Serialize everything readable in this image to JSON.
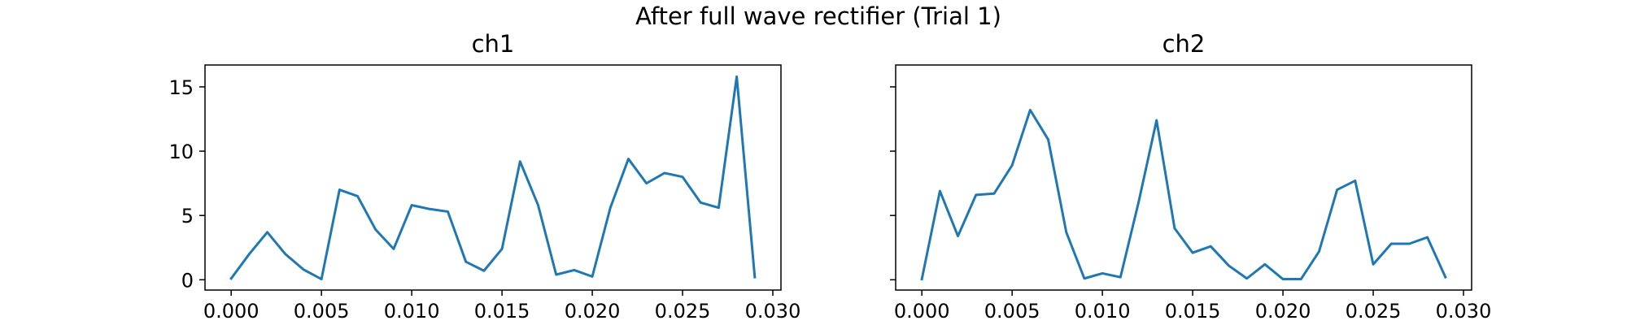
{
  "figure": {
    "suptitle": "After full wave rectifier (Trial 1)"
  },
  "chart_data": [
    {
      "type": "line",
      "title": "ch1",
      "xlabel": "",
      "ylabel": "",
      "xlim": [
        -0.00145,
        0.03045
      ],
      "ylim": [
        -0.8,
        16.7
      ],
      "xticks": [
        0.0,
        0.005,
        0.01,
        0.015,
        0.02,
        0.025,
        0.03
      ],
      "xtick_labels": [
        "0.000",
        "0.005",
        "0.010",
        "0.015",
        "0.020",
        "0.025",
        "0.030"
      ],
      "yticks": [
        0,
        5,
        10,
        15
      ],
      "ytick_labels": [
        "0",
        "5",
        "10",
        "15"
      ],
      "show_yticklabels": true,
      "grid": false,
      "line_color": "#1f77b4",
      "series": [
        {
          "x": [
            0.0,
            0.001,
            0.002,
            0.003,
            0.004,
            0.005,
            0.006,
            0.007,
            0.008,
            0.009,
            0.01,
            0.011,
            0.012,
            0.013,
            0.014,
            0.015,
            0.016,
            0.017,
            0.018,
            0.019,
            0.02,
            0.021,
            0.022,
            0.023,
            0.024,
            0.025,
            0.026,
            0.027,
            0.028,
            0.029
          ],
          "y": [
            0.1,
            2.0,
            3.7,
            2.0,
            0.8,
            0.05,
            7.0,
            6.5,
            3.9,
            2.4,
            5.8,
            5.5,
            5.3,
            1.4,
            0.7,
            2.4,
            9.2,
            5.8,
            0.4,
            0.75,
            0.25,
            5.6,
            9.4,
            7.5,
            8.3,
            8.0,
            6.0,
            5.6,
            15.8,
            0.2
          ]
        }
      ]
    },
    {
      "type": "line",
      "title": "ch2",
      "xlabel": "",
      "ylabel": "",
      "xlim": [
        -0.00145,
        0.03045
      ],
      "ylim": [
        -0.8,
        16.7
      ],
      "xticks": [
        0.0,
        0.005,
        0.01,
        0.015,
        0.02,
        0.025,
        0.03
      ],
      "xtick_labels": [
        "0.000",
        "0.005",
        "0.010",
        "0.015",
        "0.020",
        "0.025",
        "0.030"
      ],
      "yticks": [
        0,
        5,
        10,
        15
      ],
      "ytick_labels": [
        "",
        "",
        "",
        ""
      ],
      "show_yticklabels": false,
      "grid": false,
      "line_color": "#1f77b4",
      "series": [
        {
          "x": [
            0.0,
            0.001,
            0.002,
            0.003,
            0.004,
            0.005,
            0.006,
            0.007,
            0.008,
            0.009,
            0.01,
            0.011,
            0.012,
            0.013,
            0.014,
            0.015,
            0.016,
            0.017,
            0.018,
            0.019,
            0.02,
            0.021,
            0.022,
            0.023,
            0.024,
            0.025,
            0.026,
            0.027,
            0.028,
            0.029
          ],
          "y": [
            0.05,
            6.9,
            3.4,
            6.6,
            6.7,
            8.9,
            13.2,
            10.9,
            3.7,
            0.1,
            0.5,
            0.2,
            6.0,
            12.4,
            4.0,
            2.1,
            2.6,
            1.1,
            0.1,
            1.2,
            0.05,
            0.05,
            2.2,
            7.0,
            7.7,
            1.2,
            2.8,
            2.8,
            3.3,
            0.2
          ]
        }
      ]
    }
  ]
}
